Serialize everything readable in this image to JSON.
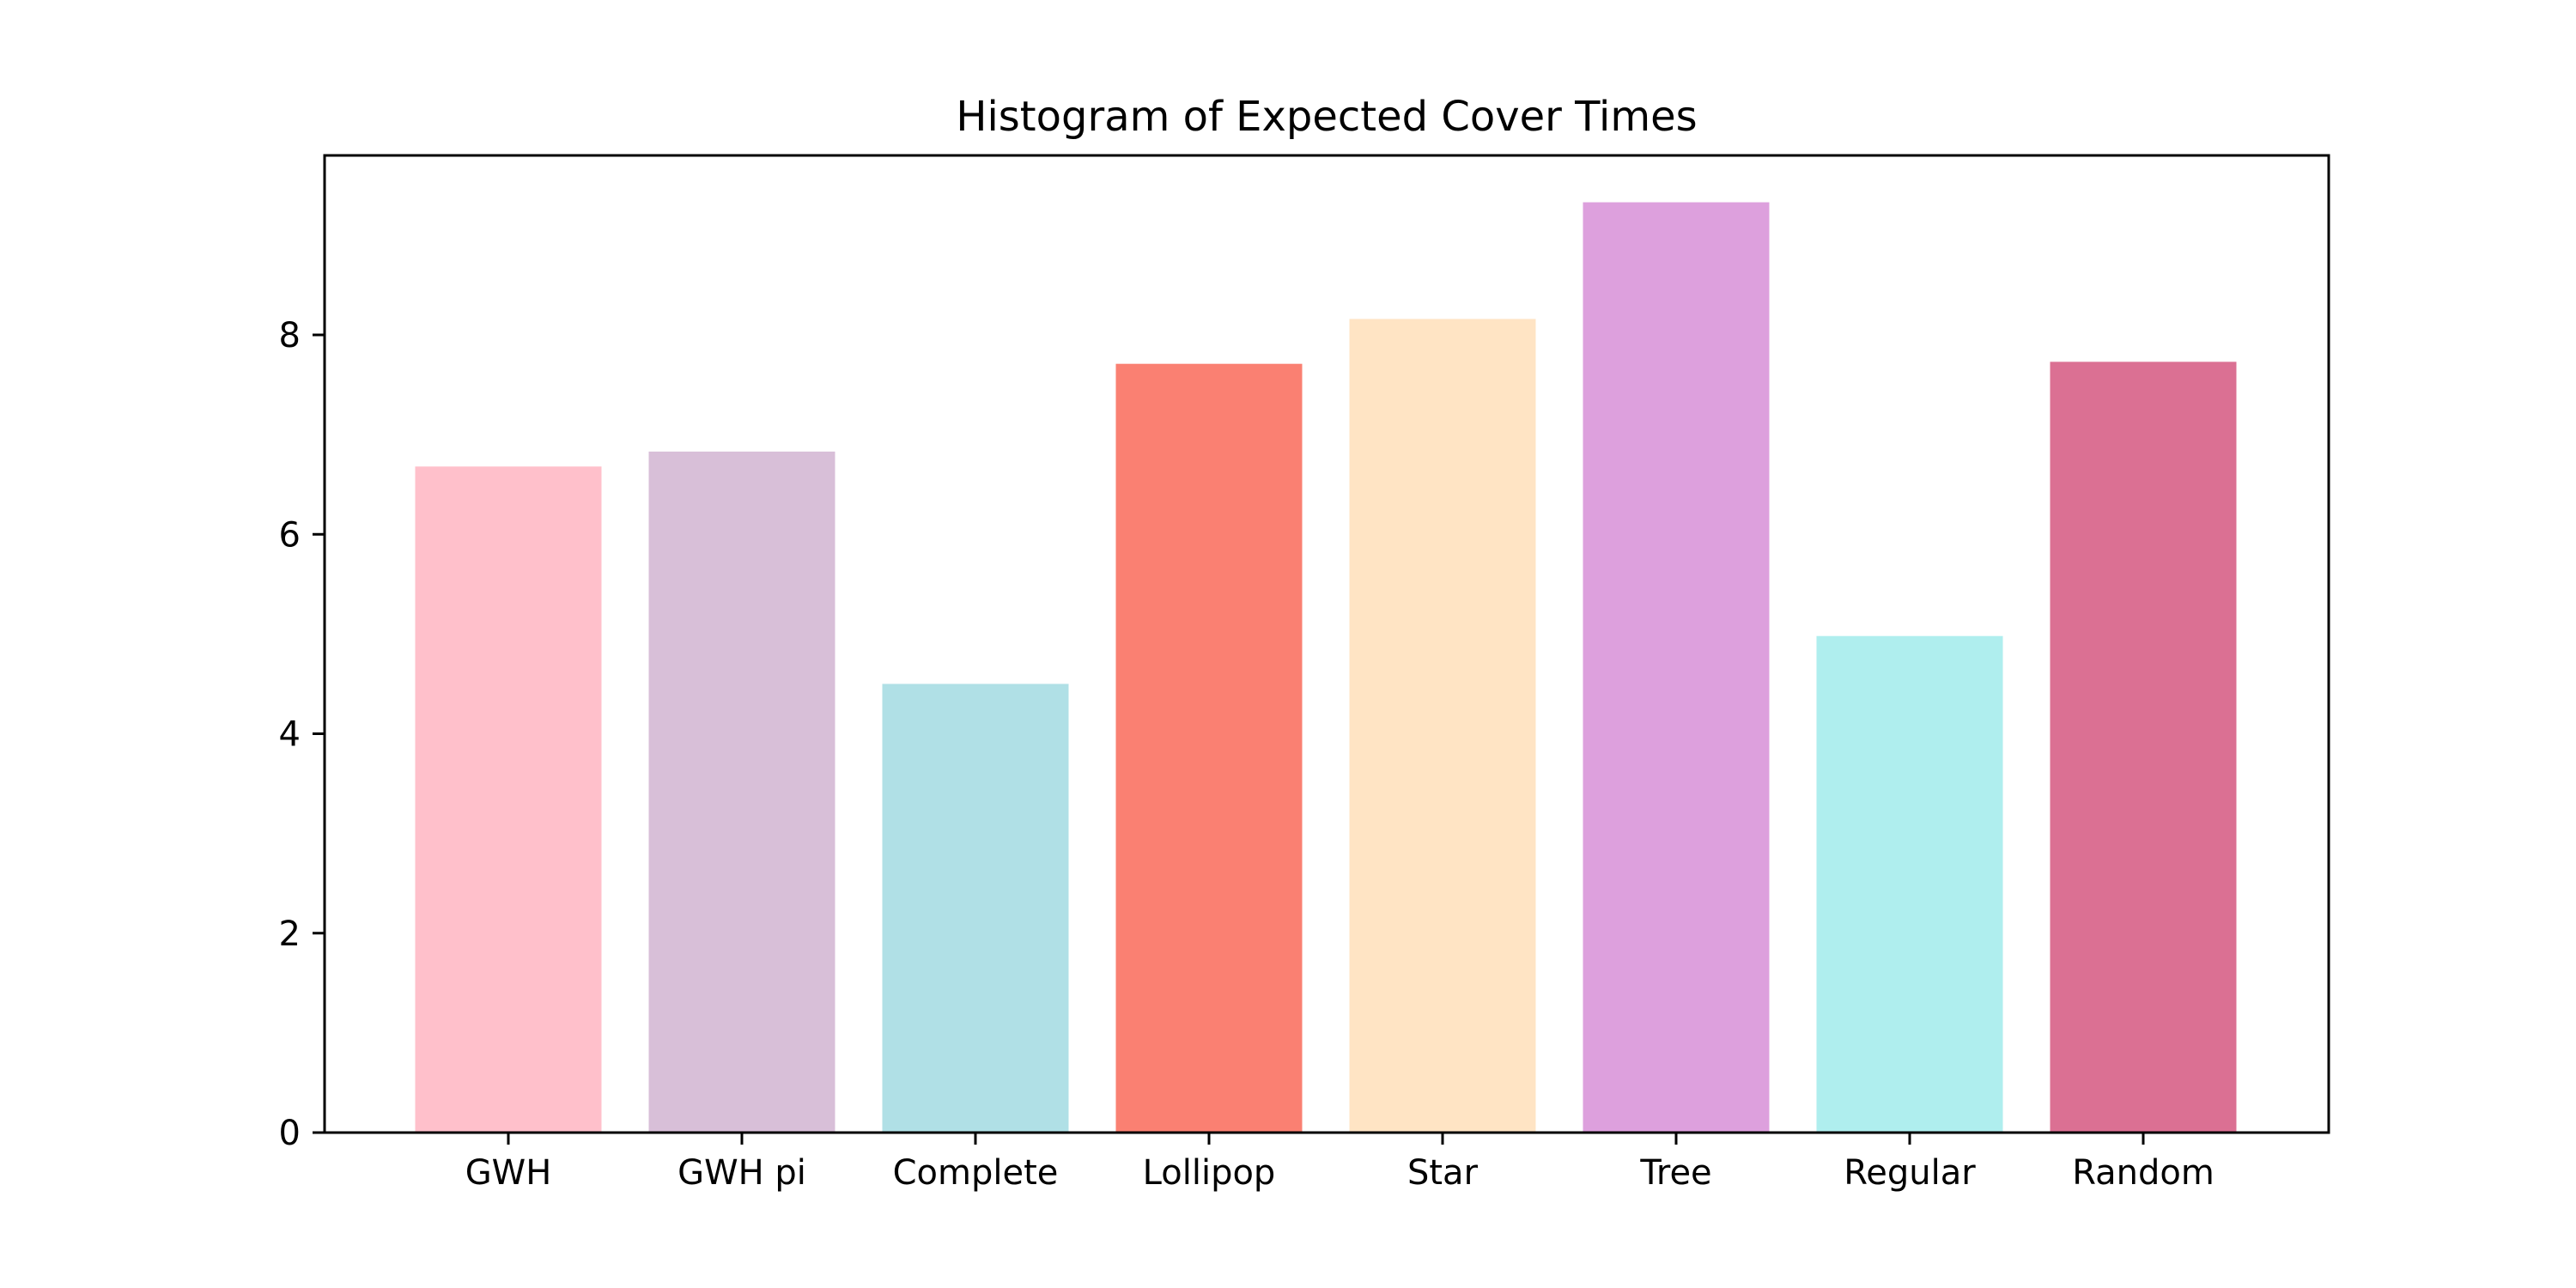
{
  "chart_data": {
    "type": "bar",
    "title": "Histogram of Expected Cover Times",
    "xlabel": "",
    "ylabel": "",
    "categories": [
      "GWH",
      "GWH pi",
      "Complete",
      "Lollipop",
      "Star",
      "Tree",
      "Regular",
      "Random"
    ],
    "values": [
      6.68,
      6.83,
      4.5,
      7.71,
      8.16,
      9.33,
      4.98,
      7.73
    ],
    "colors": [
      "#FFC0CB",
      "#D8BFD8",
      "#B0E0E6",
      "#FA8072",
      "#FFE4C4",
      "#DDA0DD",
      "#AFEEEE",
      "#DB7093"
    ],
    "ylim": [
      0,
      9.8
    ],
    "yticks": [
      0,
      2,
      4,
      6,
      8
    ],
    "grid": false,
    "legend": "none"
  }
}
